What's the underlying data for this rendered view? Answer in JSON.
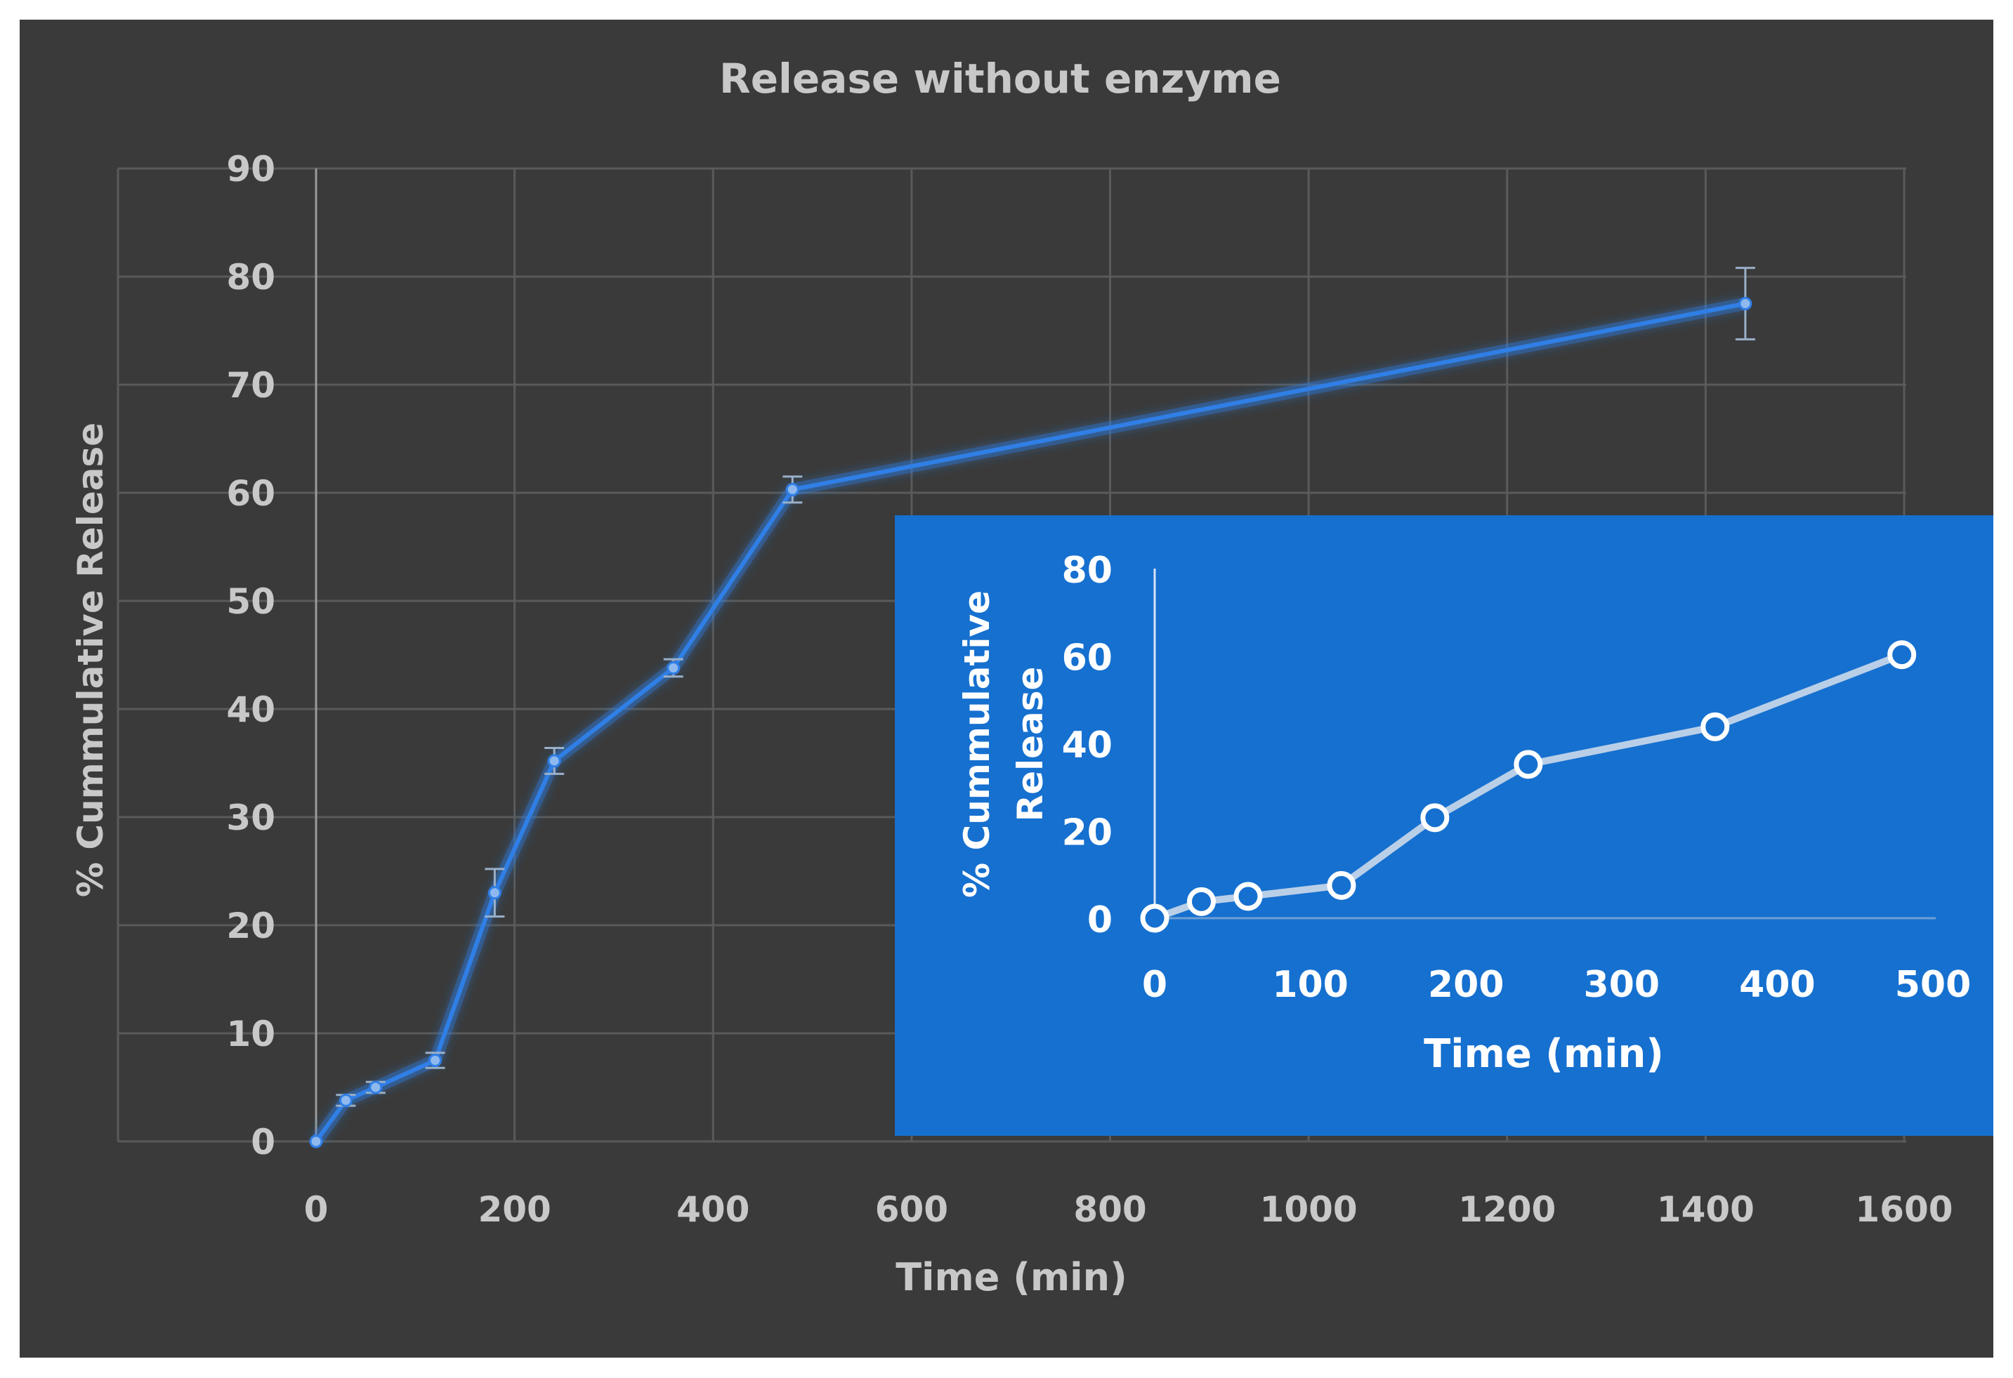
{
  "colors": {
    "background": "#3a3a3a",
    "grid": "#5a5a5a",
    "main_line": "#2f7fe6",
    "inset_background": "#1670cf",
    "inset_line": "#b9cfe8",
    "text_main": "#c8c8c8",
    "text_inset": "#ffffff"
  },
  "chart_data": [
    {
      "type": "line",
      "title": "Release without enzyme",
      "xlabel": "Time (min)",
      "ylabel": "% Cummulative Release",
      "xlim": [
        0,
        1600
      ],
      "ylim": [
        0,
        90
      ],
      "xticks": [
        "0",
        "200",
        "400",
        "600",
        "800",
        "1000",
        "1200",
        "1400",
        "1600"
      ],
      "yticks": [
        "0",
        "10",
        "20",
        "30",
        "40",
        "50",
        "60",
        "70",
        "80",
        "90"
      ],
      "grid": true,
      "series": [
        {
          "x": [
            0,
            30,
            60,
            120,
            180,
            240,
            360,
            480,
            1440
          ],
          "y": [
            0,
            3.8,
            5,
            7.5,
            23,
            35.2,
            43.8,
            60.3,
            77.5
          ],
          "error": [
            0.3,
            0.5,
            0.5,
            0.7,
            2.2,
            1.2,
            0.8,
            1.2,
            3.3
          ]
        }
      ]
    },
    {
      "type": "line",
      "title": "",
      "xlabel": "Time (min)",
      "ylabel_lines": [
        "% Cummulative",
        "Release"
      ],
      "xlim": [
        0,
        500
      ],
      "ylim": [
        0,
        80
      ],
      "xticks": [
        "0",
        "100",
        "200",
        "300",
        "400",
        "500"
      ],
      "yticks": [
        "0",
        "20",
        "40",
        "60",
        "80"
      ],
      "grid": false,
      "placement": "lower-right inset",
      "series": [
        {
          "x": [
            0,
            30,
            60,
            120,
            180,
            240,
            360,
            480
          ],
          "y": [
            0,
            3.8,
            5,
            7.5,
            23,
            35.2,
            43.8,
            60.3
          ]
        }
      ]
    }
  ]
}
